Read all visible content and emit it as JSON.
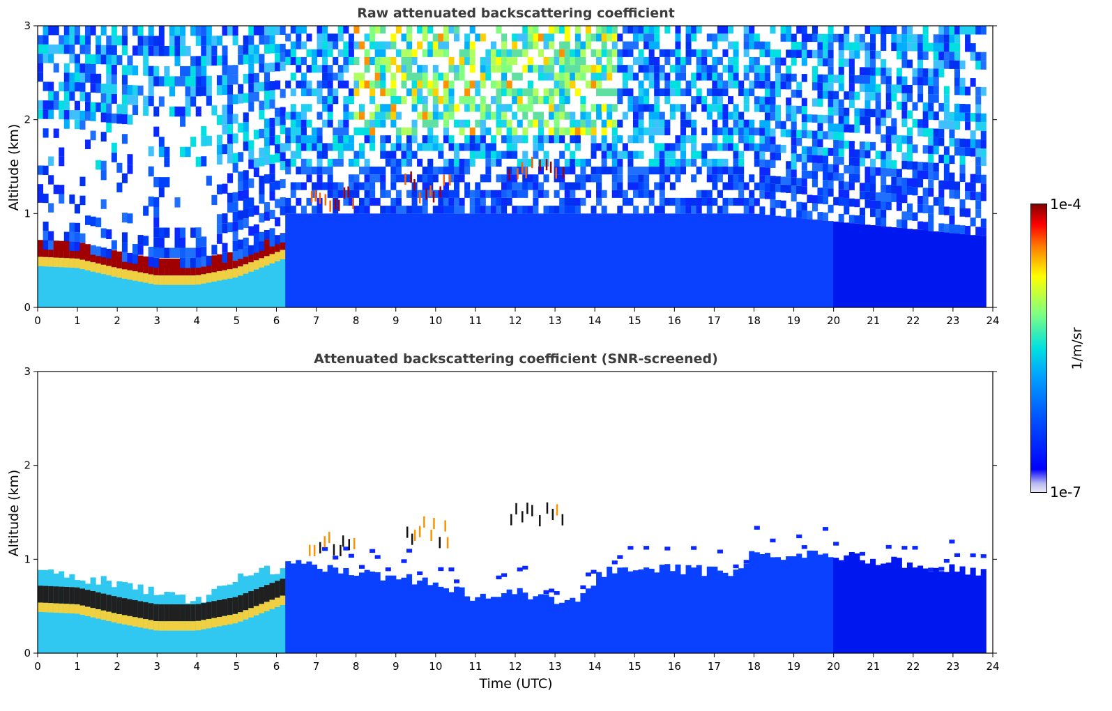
{
  "chart_data": [
    {
      "type": "heatmap",
      "title": "Raw attenuated backscattering coefficient",
      "xlabel": "",
      "ylabel": "Altitude (km)",
      "xlim": [
        0,
        24
      ],
      "ylim": [
        0,
        3
      ],
      "x_ticks": [
        "0",
        "1",
        "2",
        "3",
        "4",
        "5",
        "6",
        "7",
        "8",
        "9",
        "10",
        "11",
        "12",
        "13",
        "14",
        "15",
        "16",
        "17",
        "18",
        "19",
        "20",
        "21",
        "22",
        "23",
        "24"
      ],
      "y_ticks": [
        "0",
        "1",
        "2",
        "3"
      ],
      "grid": false,
      "features": {
        "boundary_layer_top_km": [
          {
            "x": 0,
            "y": 0.62
          },
          {
            "x": 1,
            "y": 0.6
          },
          {
            "x": 2,
            "y": 0.5
          },
          {
            "x": 3,
            "y": 0.42
          },
          {
            "x": 4,
            "y": 0.42
          },
          {
            "x": 5,
            "y": 0.5
          },
          {
            "x": 6.2,
            "y": 0.7
          }
        ],
        "cloud_segments": [
          {
            "x_start": 6.8,
            "x_end": 8.0,
            "y_min": 1.0,
            "y_max": 1.2
          },
          {
            "x_start": 9.2,
            "x_end": 10.4,
            "y_min": 1.1,
            "y_max": 1.35
          },
          {
            "x_start": 11.8,
            "x_end": 13.3,
            "y_min": 1.35,
            "y_max": 1.5
          }
        ]
      }
    },
    {
      "type": "heatmap",
      "title": "Attenuated backscattering coefficient (SNR-screened)",
      "xlabel": "Time (UTC)",
      "ylabel": "Altitude (km)",
      "xlim": [
        0,
        24
      ],
      "ylim": [
        0,
        3
      ],
      "x_ticks": [
        "0",
        "1",
        "2",
        "3",
        "4",
        "5",
        "6",
        "7",
        "8",
        "9",
        "10",
        "11",
        "12",
        "13",
        "14",
        "15",
        "16",
        "17",
        "18",
        "19",
        "20",
        "21",
        "22",
        "23",
        "24"
      ],
      "y_ticks": [
        "0",
        "1",
        "2",
        "3"
      ],
      "grid": false,
      "features": {
        "signal_top_km": [
          {
            "x": 0,
            "y": 0.85
          },
          {
            "x": 2,
            "y": 0.75
          },
          {
            "x": 4,
            "y": 0.55
          },
          {
            "x": 5,
            "y": 0.8
          },
          {
            "x": 6.5,
            "y": 0.95
          },
          {
            "x": 8,
            "y": 0.85
          },
          {
            "x": 10,
            "y": 0.75
          },
          {
            "x": 11,
            "y": 0.6
          },
          {
            "x": 12,
            "y": 0.65
          },
          {
            "x": 13.5,
            "y": 0.55
          },
          {
            "x": 14.3,
            "y": 0.9
          },
          {
            "x": 16,
            "y": 0.9
          },
          {
            "x": 17.4,
            "y": 0.85
          },
          {
            "x": 18,
            "y": 1.05
          },
          {
            "x": 20,
            "y": 1.05
          },
          {
            "x": 22,
            "y": 0.95
          },
          {
            "x": 23.8,
            "y": 0.85
          }
        ]
      }
    }
  ],
  "colorbar": {
    "min_label": "1e-7",
    "max_label": "1e-4",
    "unit": "1/m/sr",
    "colormap": "jet",
    "low_color": "#e8e8f8"
  }
}
